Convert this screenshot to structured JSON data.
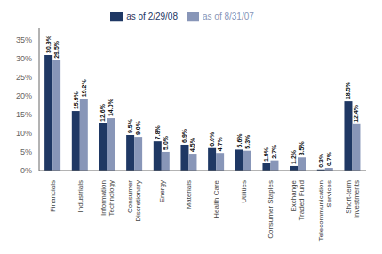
{
  "chart_data": {
    "type": "bar",
    "categories": [
      "Financials",
      "Industrials",
      "Information\nTechnology",
      "Consumer\nDiscretionary",
      "Energy",
      "Materials",
      "Health Care",
      "Utilities",
      "Consumer Staples",
      "Exchange\nTraded Fund",
      "Telecommunication\nServices",
      "Short-term\nInvestments"
    ],
    "series": [
      {
        "name": "as of 2/29/08",
        "color": "#1f3864",
        "values": [
          30.9,
          15.9,
          12.6,
          9.5,
          7.8,
          6.9,
          6.0,
          5.6,
          1.9,
          1.2,
          0.3,
          18.5
        ],
        "value_labels": [
          "30.9%",
          "15.9%",
          "12.6%",
          "9.5%",
          "7.8%",
          "6.9%",
          "6.0%",
          "5.6%",
          "1.9%",
          "1.2%",
          "0.3%",
          "18.5%"
        ]
      },
      {
        "name": "as of 8/31/07",
        "color": "#8896b8",
        "values": [
          29.5,
          19.2,
          14.0,
          9.0,
          5.0,
          4.5,
          4.7,
          5.3,
          2.7,
          3.5,
          0.7,
          12.4
        ],
        "value_labels": [
          "29.5%",
          "19.2%",
          "14.0%",
          "9.0%",
          "5.0%",
          "4.5%",
          "4.7%",
          "5.3%",
          "2.7%",
          "3.5%",
          "0.7%",
          "12.4%"
        ]
      }
    ],
    "ylim": [
      0,
      38
    ],
    "yticks": [
      {
        "value": 0,
        "label": "0%"
      },
      {
        "value": 5,
        "label": "5%"
      },
      {
        "value": 10,
        "label": "10%"
      },
      {
        "value": 15,
        "label": "15%"
      },
      {
        "value": 20,
        "label": "20%"
      },
      {
        "value": 25,
        "label": "25%"
      },
      {
        "value": 30,
        "label": "30%"
      },
      {
        "value": 35,
        "label": "35%"
      }
    ],
    "data_labels": true,
    "legend": "top",
    "grid": false
  }
}
